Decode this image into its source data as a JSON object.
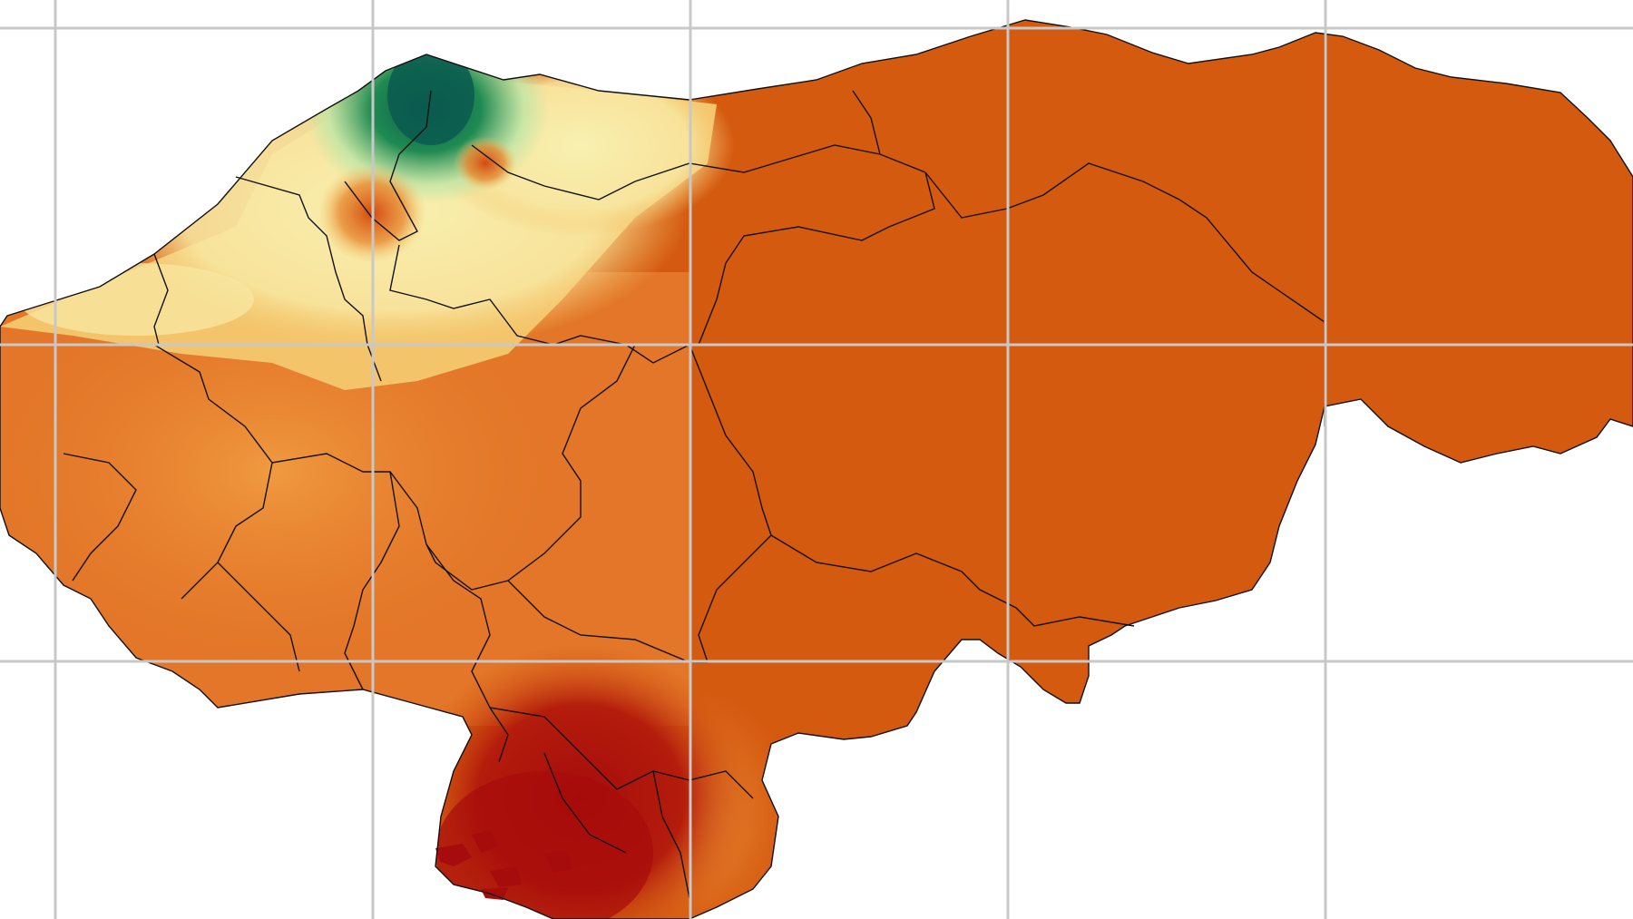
{
  "map": {
    "kind": "choropleth-raster",
    "background_color": "#ffffff",
    "graticule": {
      "visible": true,
      "color": "#c8c8c8"
    },
    "palette": {
      "dark_green": "#0b5a4f",
      "green": "#1f8a52",
      "light_green": "#bde6a8",
      "pale_yellow": "#f8f0b0",
      "yellow_orange": "#f4c46a",
      "light_orange": "#f09a40",
      "orange": "#e4782a",
      "dark_orange": "#d45a10",
      "red": "#b41c0c",
      "dark_red": "#a60c0c"
    },
    "boundary_color": "#111111"
  }
}
